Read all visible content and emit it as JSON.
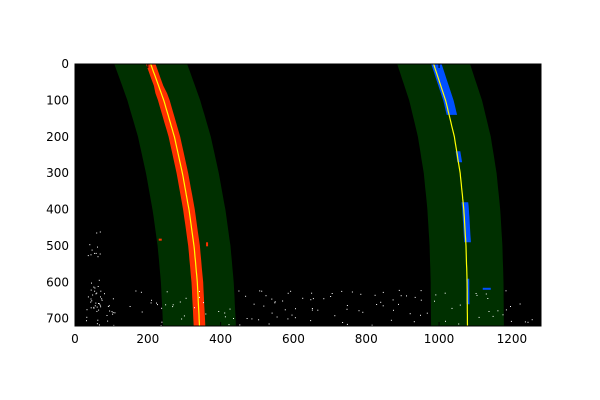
{
  "chart_data": {
    "type": "scatter",
    "title": "",
    "xlabel": "",
    "ylabel": "",
    "xlim": [
      0,
      1280
    ],
    "ylim": [
      720,
      0
    ],
    "y_axis_inverted": true,
    "grid": false,
    "legend": "none",
    "xticks": [
      0,
      200,
      400,
      600,
      800,
      1000,
      1200
    ],
    "yticks": [
      0,
      100,
      200,
      300,
      400,
      500,
      600,
      700
    ],
    "background": "#000000",
    "colors": {
      "search_window": "#003000",
      "left_lane_pixels": "#ff3000",
      "right_lane_pixels": "#0050ff",
      "fit_line": "#ffff00",
      "noise_pixels": "#ffffff",
      "frame": "#000000"
    },
    "left_fit": {
      "y": [
        0,
        100,
        200,
        300,
        400,
        500,
        600,
        720
      ],
      "x": [
        208,
        244,
        273,
        295,
        313,
        327,
        336,
        342
      ]
    },
    "right_fit": {
      "y": [
        0,
        100,
        200,
        300,
        400,
        500,
        600,
        720
      ],
      "x": [
        985,
        1018,
        1042,
        1058,
        1068,
        1074,
        1077,
        1078
      ]
    },
    "search_margin": 100
  }
}
